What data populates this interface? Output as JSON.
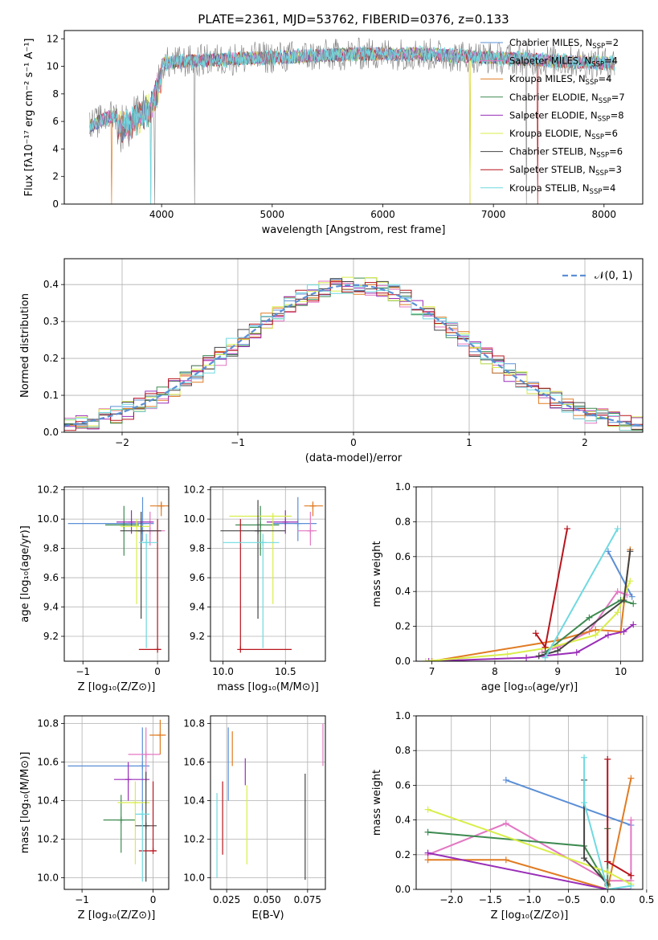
{
  "figure": {
    "title": "PLATE=2361, MJD=53762, FIBERID=0376, z=0.133"
  },
  "colors": {
    "chabrier_miles": "#5b8fd6",
    "salpeter_miles": "#e377c2",
    "kroupa_miles": "#e07b22",
    "chabrier_elodie": "#3d8a50",
    "salpeter_elodie": "#9a2eb8",
    "kroupa_elodie": "#d9ee4a",
    "chabrier_stelib": "#444444",
    "salpeter_stelib": "#b8141c",
    "kroupa_stelib": "#6fd9e0",
    "data_spectrum": "#7f7f7f",
    "normal_curve": "#5b8fd6",
    "grid": "#b0b0b0"
  },
  "chart_data": [
    {
      "id": "spectrum",
      "type": "line",
      "xlabel": "wavelength [Angstrom, rest frame]",
      "ylabel": "Flux [fλ10⁻¹⁷ erg cm⁻² s⁻¹ A⁻¹]",
      "xlim": [
        3120,
        8350
      ],
      "ylim": [
        0,
        12.6
      ],
      "xticks": [
        4000,
        5000,
        6000,
        7000,
        8000
      ],
      "yticks": [
        0,
        2,
        4,
        6,
        8,
        10,
        12
      ],
      "grid": false,
      "legend_position": "upper-right",
      "legend": [
        {
          "key": "chabrier_miles",
          "label": "Chabrier MILES, N",
          "sub": "SSP",
          "n": "=2"
        },
        {
          "key": "salpeter_miles",
          "label": "Salpeter MILES, N",
          "sub": "SSP",
          "n": "=4"
        },
        {
          "key": "kroupa_miles",
          "label": "Kroupa MILES, N",
          "sub": "SSP",
          "n": "=4"
        },
        {
          "key": "chabrier_elodie",
          "label": "Chabrier ELODIE, N",
          "sub": "SSP",
          "n": "=7"
        },
        {
          "key": "salpeter_elodie",
          "label": "Salpeter ELODIE, N",
          "sub": "SSP",
          "n": "=8"
        },
        {
          "key": "kroupa_elodie",
          "label": "Kroupa ELODIE, N",
          "sub": "SSP",
          "n": "=6"
        },
        {
          "key": "chabrier_stelib",
          "label": "Chabrier STELIB, N",
          "sub": "SSP",
          "n": "=6"
        },
        {
          "key": "salpeter_stelib",
          "label": "Salpeter STELIB, N",
          "sub": "SSP",
          "n": "=3"
        },
        {
          "key": "kroupa_stelib",
          "label": "Kroupa STELIB, N",
          "sub": "SSP",
          "n": "=4"
        }
      ],
      "continuum_nodes": [
        [
          3350,
          5.6
        ],
        [
          3500,
          6.3
        ],
        [
          3700,
          6.6
        ],
        [
          3900,
          7.8
        ],
        [
          4000,
          10.2
        ],
        [
          4300,
          10.4
        ],
        [
          4800,
          10.6
        ],
        [
          5200,
          10.7
        ],
        [
          5800,
          10.9
        ],
        [
          6300,
          10.9
        ],
        [
          6800,
          10.7
        ],
        [
          7300,
          10.5
        ],
        [
          7800,
          10.3
        ],
        [
          8100,
          10.2
        ]
      ],
      "absorption_features": [
        [
          3550,
          0.0
        ],
        [
          3900,
          0.0
        ],
        [
          3935,
          0.0
        ],
        [
          4300,
          0.0
        ],
        [
          6790,
          0.0
        ],
        [
          7300,
          0.0
        ],
        [
          7400,
          0.0
        ]
      ],
      "x_range_data": [
        3350,
        8100
      ]
    },
    {
      "id": "residuals",
      "type": "line",
      "xlabel": "(data-model)/error",
      "ylabel": "Normed distribution",
      "xlim": [
        -2.5,
        2.5
      ],
      "ylim": [
        0,
        0.47
      ],
      "xticks": [
        -2,
        -1,
        0,
        1,
        2
      ],
      "yticks": [
        0.0,
        0.1,
        0.2,
        0.3,
        0.4
      ],
      "grid": true,
      "legend_position": "upper-right",
      "legend_label": "𝒩(0, 1)",
      "normal": {
        "mean": 0,
        "sigma": 1
      },
      "bin_width": 0.1
    },
    {
      "id": "age_vs_Z",
      "type": "scatter",
      "xlabel": "Z [log₁₀(Z/Z⊙)]",
      "ylabel": "age  [log₁₀(age/yr)]",
      "xlim": [
        -1.25,
        0.15
      ],
      "ylim": [
        9.03,
        10.22
      ],
      "xticks": [
        -1,
        0
      ],
      "yticks": [
        9.2,
        9.4,
        9.6,
        9.8,
        10.0,
        10.2
      ],
      "grid": true,
      "points": [
        {
          "key": "chabrier_miles",
          "x": -0.2,
          "xlo": -1.2,
          "xhi": -0.05,
          "y": 9.97,
          "ylo": 9.85,
          "yhi": 10.15
        },
        {
          "key": "salpeter_miles",
          "x": -0.1,
          "xlo": -0.3,
          "xhi": 0.1,
          "y": 9.92,
          "ylo": 9.82,
          "yhi": 10.05
        },
        {
          "key": "kroupa_miles",
          "x": 0.05,
          "xlo": -0.1,
          "xhi": 0.15,
          "y": 10.09,
          "ylo": 10.02,
          "yhi": 10.12
        },
        {
          "key": "chabrier_elodie",
          "x": -0.45,
          "xlo": -0.7,
          "xhi": -0.25,
          "y": 9.96,
          "ylo": 9.75,
          "yhi": 10.09
        },
        {
          "key": "salpeter_elodie",
          "x": -0.35,
          "xlo": -0.55,
          "xhi": -0.05,
          "y": 9.98,
          "ylo": 9.9,
          "yhi": 10.06
        },
        {
          "key": "kroupa_elodie",
          "x": -0.28,
          "xlo": -0.5,
          "xhi": -0.1,
          "y": 9.95,
          "ylo": 9.42,
          "yhi": 10.0
        },
        {
          "key": "chabrier_stelib",
          "x": -0.22,
          "xlo": -0.5,
          "xhi": 0.05,
          "y": 9.92,
          "ylo": 9.32,
          "yhi": 10.05
        },
        {
          "key": "salpeter_stelib",
          "x": 0.0,
          "xlo": -0.25,
          "xhi": 0.05,
          "y": 9.11,
          "ylo": 9.11,
          "yhi": 10.0
        },
        {
          "key": "kroupa_stelib",
          "x": -0.15,
          "xlo": -0.25,
          "xhi": 0.0,
          "y": 9.84,
          "ylo": 9.12,
          "yhi": 9.9
        }
      ]
    },
    {
      "id": "age_vs_mass",
      "type": "scatter",
      "xlabel": "mass [log₁₀(M/M⊙)]",
      "ylabel": "",
      "xlim": [
        9.9,
        10.82
      ],
      "ylim": [
        9.03,
        10.22
      ],
      "xticks": [
        10.0,
        10.5
      ],
      "yticks": [
        9.2,
        9.4,
        9.6,
        9.8,
        10.0,
        10.2
      ],
      "grid": true,
      "points": [
        {
          "key": "chabrier_miles",
          "x": 10.6,
          "xlo": 10.4,
          "xhi": 10.75,
          "y": 9.97,
          "ylo": 9.85,
          "yhi": 10.15
        },
        {
          "key": "salpeter_miles",
          "x": 10.7,
          "xlo": 10.6,
          "xhi": 10.75,
          "y": 9.92,
          "ylo": 9.82,
          "yhi": 10.05
        },
        {
          "key": "kroupa_miles",
          "x": 10.72,
          "xlo": 10.65,
          "xhi": 10.8,
          "y": 10.09,
          "ylo": 10.02,
          "yhi": 10.12
        },
        {
          "key": "chabrier_elodie",
          "x": 10.3,
          "xlo": 10.1,
          "xhi": 10.45,
          "y": 9.96,
          "ylo": 9.75,
          "yhi": 10.09
        },
        {
          "key": "salpeter_elodie",
          "x": 10.5,
          "xlo": 10.35,
          "xhi": 10.6,
          "y": 9.98,
          "ylo": 9.9,
          "yhi": 10.06
        },
        {
          "key": "kroupa_elodie",
          "x": 10.4,
          "xlo": 10.05,
          "xhi": 10.55,
          "y": 10.02,
          "ylo": 9.42,
          "yhi": 10.02
        },
        {
          "key": "chabrier_stelib",
          "x": 10.28,
          "xlo": 9.98,
          "xhi": 10.5,
          "y": 9.92,
          "ylo": 9.32,
          "yhi": 10.13
        },
        {
          "key": "salpeter_stelib",
          "x": 10.14,
          "xlo": 10.14,
          "xhi": 10.55,
          "y": 9.11,
          "ylo": 9.11,
          "yhi": 10.0
        },
        {
          "key": "kroupa_stelib",
          "x": 10.32,
          "xlo": 10.0,
          "xhi": 10.45,
          "y": 9.84,
          "ylo": 9.12,
          "yhi": 9.9
        }
      ]
    },
    {
      "id": "weight_vs_age",
      "type": "line",
      "xlabel": "age  [log₁₀(age/yr)]",
      "ylabel": "mass weight",
      "xlim": [
        6.75,
        10.35
      ],
      "ylim": [
        0,
        1.0
      ],
      "xticks": [
        7,
        8,
        9,
        10
      ],
      "yticks": [
        0.0,
        0.2,
        0.4,
        0.6,
        0.8,
        1.0
      ],
      "grid": true,
      "series": [
        {
          "key": "chabrier_miles",
          "x": [
            9.8,
            10.18
          ],
          "y": [
            0.63,
            0.37
          ]
        },
        {
          "key": "salpeter_miles",
          "x": [
            8.75,
            9.0,
            9.5,
            9.95,
            10.1
          ],
          "y": [
            0.05,
            0.08,
            0.17,
            0.4,
            0.38
          ]
        },
        {
          "key": "kroupa_miles",
          "x": [
            7.0,
            9.0,
            9.6,
            10.0,
            10.15
          ],
          "y": [
            0.0,
            0.12,
            0.18,
            0.17,
            0.64
          ]
        },
        {
          "key": "chabrier_elodie",
          "x": [
            8.8,
            9.5,
            10.0,
            10.2
          ],
          "y": [
            0.05,
            0.25,
            0.35,
            0.33
          ]
        },
        {
          "key": "salpeter_elodie",
          "x": [
            6.95,
            8.5,
            9.3,
            9.8,
            10.05,
            10.2
          ],
          "y": [
            0.0,
            0.02,
            0.05,
            0.15,
            0.17,
            0.21
          ]
        },
        {
          "key": "kroupa_elodie",
          "x": [
            6.9,
            8.2,
            8.9,
            9.6,
            9.95,
            10.15
          ],
          "y": [
            0.0,
            0.04,
            0.08,
            0.15,
            0.28,
            0.46
          ]
        },
        {
          "key": "chabrier_stelib",
          "x": [
            8.7,
            9.0,
            10.05,
            10.15
          ],
          "y": [
            0.03,
            0.06,
            0.35,
            0.63
          ]
        },
        {
          "key": "salpeter_stelib",
          "x": [
            8.65,
            8.8,
            9.15
          ],
          "y": [
            0.16,
            0.08,
            0.76
          ]
        },
        {
          "key": "kroupa_stelib",
          "x": [
            8.8,
            9.95
          ],
          "y": [
            0.02,
            0.76
          ]
        }
      ]
    },
    {
      "id": "mass_vs_Z",
      "type": "scatter",
      "xlabel": "Z [log₁₀(Z/Z⊙)]",
      "ylabel": "mass [log₁₀(M/M⊙)]",
      "xlim": [
        -1.25,
        0.22
      ],
      "ylim": [
        9.94,
        10.84
      ],
      "xticks": [
        -1,
        0
      ],
      "yticks": [
        10.0,
        10.2,
        10.4,
        10.6,
        10.8
      ],
      "grid": true,
      "points": [
        {
          "key": "chabrier_miles",
          "x": -0.15,
          "xlo": -1.2,
          "xhi": -0.05,
          "y": 10.58,
          "ylo": 10.3,
          "yhi": 10.78
        },
        {
          "key": "salpeter_miles",
          "x": -0.1,
          "xlo": -0.35,
          "xhi": 0.1,
          "y": 10.64,
          "ylo": 10.5,
          "yhi": 10.78
        },
        {
          "key": "kroupa_miles",
          "x": 0.1,
          "xlo": -0.05,
          "xhi": 0.18,
          "y": 10.74,
          "ylo": 10.64,
          "yhi": 10.82
        },
        {
          "key": "chabrier_elodie",
          "x": -0.45,
          "xlo": -0.7,
          "xhi": -0.25,
          "y": 10.3,
          "ylo": 10.13,
          "yhi": 10.43
        },
        {
          "key": "salpeter_elodie",
          "x": -0.35,
          "xlo": -0.55,
          "xhi": -0.05,
          "y": 10.51,
          "ylo": 10.4,
          "yhi": 10.6
        },
        {
          "key": "kroupa_elodie",
          "x": -0.25,
          "xlo": -0.5,
          "xhi": -0.05,
          "y": 10.39,
          "ylo": 10.07,
          "yhi": 10.5
        },
        {
          "key": "chabrier_stelib",
          "x": -0.1,
          "xlo": -0.25,
          "xhi": 0.05,
          "y": 10.27,
          "ylo": 9.98,
          "yhi": 10.55
        },
        {
          "key": "salpeter_stelib",
          "x": 0.0,
          "xlo": -0.2,
          "xhi": 0.05,
          "y": 10.14,
          "ylo": 10.14,
          "yhi": 10.5
        },
        {
          "key": "kroupa_stelib",
          "x": -0.15,
          "xlo": -0.25,
          "xhi": -0.05,
          "y": 10.33,
          "ylo": 9.98,
          "yhi": 10.35
        }
      ]
    },
    {
      "id": "mass_vs_ebv",
      "type": "scatter",
      "xlabel": "E(B-V)",
      "ylabel": "",
      "xlim": [
        0.015,
        0.086
      ],
      "ylim": [
        9.94,
        10.84
      ],
      "xticks": [
        0.025,
        0.05,
        0.075
      ],
      "ytick_labels": [
        "0.025",
        "0.050",
        "0.075"
      ],
      "yticks": [
        10.0,
        10.2,
        10.4,
        10.6,
        10.8
      ],
      "grid": true,
      "points": [
        {
          "key": "kroupa_stelib",
          "x": 0.019,
          "ylo": 10.0,
          "yhi": 10.44
        },
        {
          "key": "salpeter_stelib",
          "x": 0.0225,
          "ylo": 10.12,
          "yhi": 10.5
        },
        {
          "key": "chabrier_miles",
          "x": 0.026,
          "ylo": 10.4,
          "yhi": 10.78
        },
        {
          "key": "kroupa_miles",
          "x": 0.0285,
          "ylo": 10.58,
          "yhi": 10.76
        },
        {
          "key": "salpeter_elodie",
          "x": 0.0365,
          "ylo": 10.48,
          "yhi": 10.62
        },
        {
          "key": "kroupa_elodie",
          "x": 0.0375,
          "ylo": 10.07,
          "yhi": 10.48
        },
        {
          "key": "chabrier_stelib",
          "x": 0.0735,
          "ylo": 9.99,
          "yhi": 10.54
        },
        {
          "key": "salpeter_miles",
          "x": 0.0845,
          "ylo": 10.58,
          "yhi": 10.8
        }
      ]
    },
    {
      "id": "weight_vs_Z",
      "type": "line",
      "xlabel": "Z [log₁₀(Z/Z⊙)]",
      "ylabel": "mass weight",
      "xlim": [
        -2.45,
        0.45
      ],
      "ylim": [
        0,
        1.0
      ],
      "xticks": [
        -2.0,
        -1.5,
        -1.0,
        -0.5,
        0.0,
        0.5
      ],
      "yticks": [
        0.0,
        0.2,
        0.4,
        0.6,
        0.8,
        1.0
      ],
      "grid": true,
      "series": [
        {
          "key": "chabrier_miles",
          "x": [
            -1.3,
            0.3
          ],
          "y": [
            0.63,
            0.37
          ]
        },
        {
          "key": "salpeter_miles",
          "x": [
            -2.3,
            -1.3,
            0.0,
            0.3,
            0.3
          ],
          "y": [
            0.2,
            0.38,
            0.05,
            0.05,
            0.4
          ]
        },
        {
          "key": "kroupa_miles",
          "x": [
            -2.3,
            -1.3,
            0.0,
            0.3
          ],
          "y": [
            0.17,
            0.17,
            0.0,
            0.64
          ]
        },
        {
          "key": "chabrier_elodie",
          "x": [
            -2.3,
            -0.3,
            0.0,
            0.0
          ],
          "y": [
            0.33,
            0.25,
            0.02,
            0.35
          ]
        },
        {
          "key": "salpeter_elodie",
          "x": [
            -2.3,
            0.0,
            0.3
          ],
          "y": [
            0.21,
            0.0,
            0.0
          ]
        },
        {
          "key": "kroupa_elodie",
          "x": [
            -2.3,
            0.0,
            0.3
          ],
          "y": [
            0.46,
            0.1,
            0.03
          ]
        },
        {
          "key": "chabrier_stelib",
          "x": [
            -0.3,
            -0.3,
            0.0
          ],
          "y": [
            0.63,
            0.18,
            0.03
          ]
        },
        {
          "key": "salpeter_stelib",
          "x": [
            0.0,
            0.0,
            0.0,
            0.3
          ],
          "y": [
            0.75,
            0.16,
            0.16,
            0.08
          ]
        },
        {
          "key": "kroupa_stelib",
          "x": [
            -0.3,
            -0.3,
            0.0,
            0.3
          ],
          "y": [
            0.76,
            0.5,
            0.0,
            0.02
          ]
        }
      ]
    }
  ]
}
